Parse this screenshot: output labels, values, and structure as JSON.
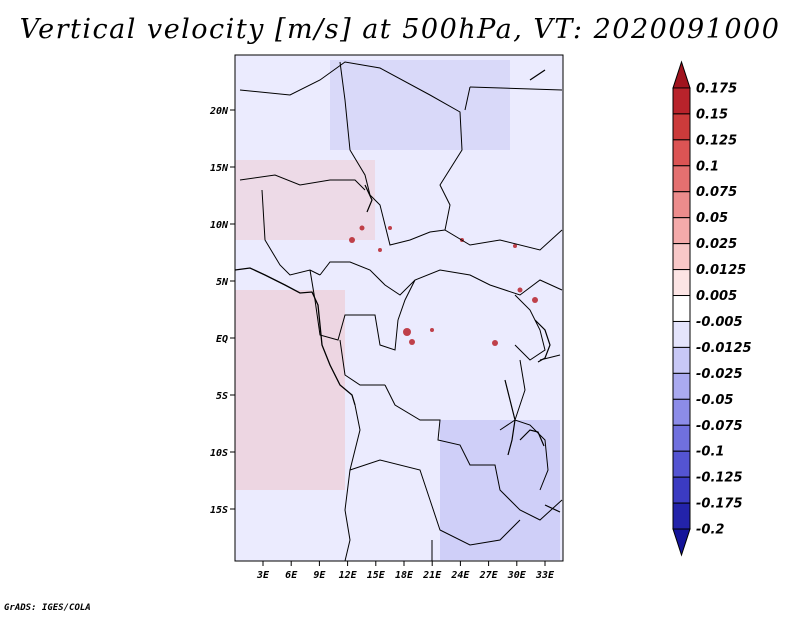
{
  "title": "Vertical velocity [m/s] at 500hPa, VT: 2020091000",
  "footer": "GrADS: IGES/COLA",
  "chart_data": {
    "type": "heatmap",
    "variable": "Vertical velocity",
    "units": "m/s",
    "level": "500hPa",
    "valid_time": "2020091000",
    "lat_ticks": [
      "20N",
      "15N",
      "10N",
      "5N",
      "EQ",
      "5S",
      "10S",
      "15S"
    ],
    "lon_ticks": [
      "3E",
      "6E",
      "9E",
      "12E",
      "15E",
      "18E",
      "21E",
      "24E",
      "27E",
      "30E",
      "33E"
    ],
    "colorbar": {
      "levels": [
        "0.175",
        "0.15",
        "0.125",
        "0.1",
        "0.075",
        "0.05",
        "0.025",
        "0.0125",
        "0.005",
        "-0.005",
        "-0.0125",
        "-0.025",
        "-0.05",
        "-0.075",
        "-0.1",
        "-0.125",
        "-0.175",
        "-0.2"
      ],
      "colors": [
        "#a0141e",
        "#b8232b",
        "#cc3b3b",
        "#dc5454",
        "#e47070",
        "#ec8c8c",
        "#f4aaaa",
        "#f8c8c8",
        "#fce4e4",
        "#ffffff",
        "#e4e4fc",
        "#c8c8f6",
        "#aaaaf0",
        "#8c8ce8",
        "#7070de",
        "#5454d2",
        "#3b3bc2",
        "#2323aa",
        "#14149a"
      ]
    }
  }
}
